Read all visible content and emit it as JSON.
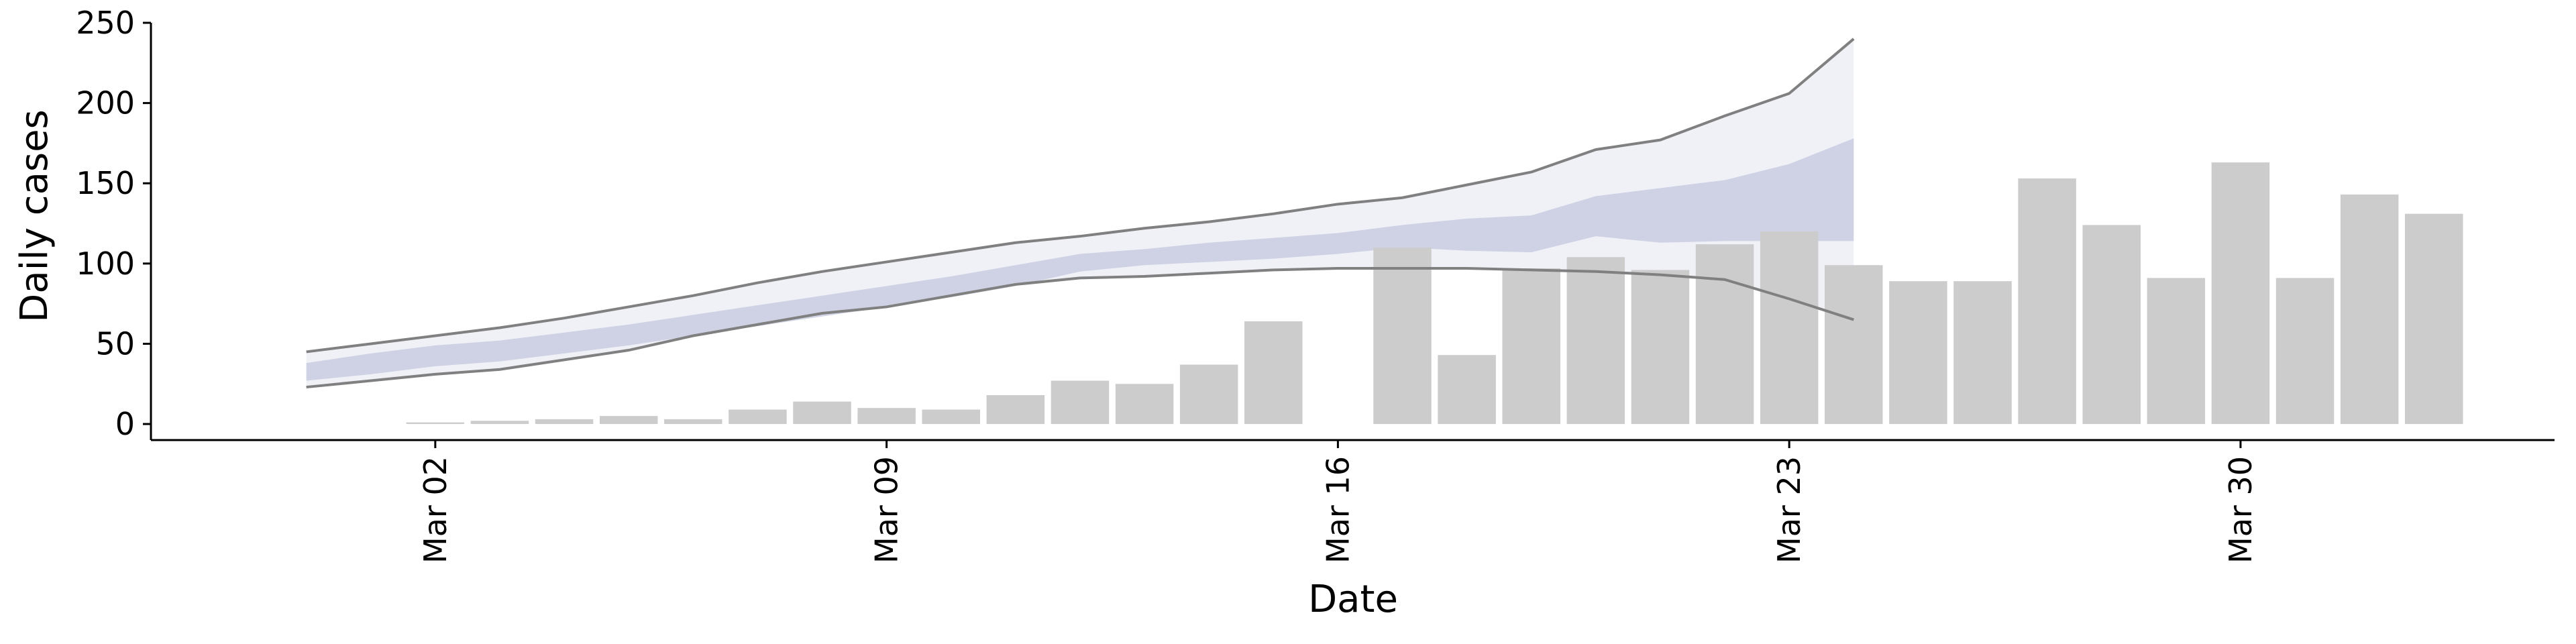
{
  "chart_data": {
    "type": "bar",
    "xlabel": "Date",
    "ylabel": "Daily cases",
    "xlim": [
      -2.41,
      34.87
    ],
    "xticks": [
      {
        "value": 2,
        "label": "Mar 02"
      },
      {
        "value": 9,
        "label": "Mar 09"
      },
      {
        "value": 16,
        "label": "Mar 16"
      },
      {
        "value": 23,
        "label": "Mar 23"
      },
      {
        "value": 30,
        "label": "Mar 30"
      }
    ],
    "ylim": [
      -10,
      250
    ],
    "yticks": [
      0,
      50,
      100,
      150,
      200,
      250
    ],
    "x": [
      2,
      3,
      4,
      5,
      6,
      7,
      8,
      9,
      10,
      11,
      12,
      13,
      14,
      15,
      16,
      17,
      18,
      19,
      20,
      21,
      22,
      23,
      24,
      25,
      26,
      27,
      28,
      29,
      30,
      31,
      32,
      33
    ],
    "values": [
      1,
      2,
      3,
      5,
      3,
      9,
      14,
      10,
      9,
      18,
      27,
      25,
      37,
      64,
      null,
      110,
      43,
      97,
      104,
      96,
      112,
      120,
      99,
      89,
      89,
      153,
      124,
      91,
      163,
      91,
      143,
      131
    ],
    "color": "#cccccc",
    "forecast": {
      "x": [
        0,
        1,
        2,
        3,
        4,
        5,
        6,
        7,
        8,
        9,
        10,
        11,
        12,
        13,
        14,
        15,
        16,
        17,
        18,
        19,
        20,
        21,
        22,
        23,
        24
      ],
      "bands": [
        {
          "color": "#eceef5",
          "lower": [
            23,
            27,
            31,
            34,
            40,
            46,
            55,
            62,
            69,
            73,
            80,
            87,
            91,
            92,
            94,
            96,
            97,
            97,
            97,
            96,
            95,
            93,
            90,
            78,
            65
          ],
          "upper": [
            45,
            50,
            55,
            60,
            66,
            73,
            80,
            88,
            95,
            101,
            107,
            113,
            117,
            122,
            126,
            131,
            137,
            141,
            149,
            157,
            171,
            177,
            192,
            206,
            240
          ]
        },
        {
          "color": "#c5cbdf",
          "lower": [
            27,
            31,
            36,
            39,
            44,
            49,
            55,
            61,
            67,
            73,
            79,
            86,
            95,
            99,
            101,
            103,
            106,
            110,
            108,
            107,
            117,
            113,
            114,
            114,
            114
          ],
          "upper": [
            38,
            44,
            49,
            52,
            57,
            62,
            68,
            74,
            80,
            86,
            92,
            99,
            106,
            109,
            113,
            116,
            119,
            124,
            128,
            130,
            142,
            147,
            152,
            162,
            178
          ]
        }
      ],
      "lines": [
        {
          "color": "#808080",
          "values": [
            45,
            50,
            55,
            60,
            66,
            73,
            80,
            88,
            95,
            101,
            107,
            113,
            117,
            122,
            126,
            131,
            137,
            141,
            149,
            157,
            171,
            177,
            192,
            206,
            240
          ]
        },
        {
          "color": "#808080",
          "values": [
            23,
            27,
            31,
            34,
            40,
            46,
            55,
            62,
            69,
            73,
            80,
            87,
            91,
            92,
            94,
            96,
            97,
            97,
            97,
            96,
            95,
            93,
            90,
            78,
            65
          ]
        }
      ]
    }
  }
}
